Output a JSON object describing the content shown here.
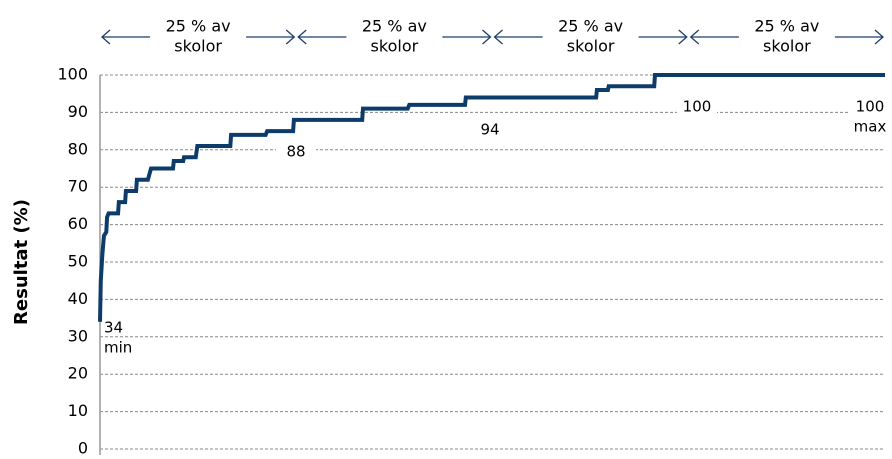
{
  "chart_data": {
    "type": "line",
    "y_label": "Resultat (%)",
    "quartile_headers": [
      [
        "25 % av",
        "skolor"
      ],
      [
        "25 % av",
        "skolor"
      ],
      [
        "25 % av",
        "skolor"
      ],
      [
        "25 % av",
        "skolor"
      ]
    ],
    "annotations": [
      [
        "34",
        "min"
      ],
      [
        "88"
      ],
      [
        "94"
      ],
      [
        "100"
      ],
      [
        "100",
        "max"
      ]
    ],
    "x": [
      0,
      0.1,
      0.3,
      0.5,
      0.8,
      0.9,
      1.1,
      2.3,
      2.4,
      3.2,
      3.3,
      4.6,
      4.7,
      6.1,
      6.5,
      9.3,
      9.4,
      10.6,
      10.7,
      12.2,
      12.4,
      16.6,
      16.7,
      21.1,
      21.3,
      24.6,
      24.7,
      33.4,
      33.5,
      39.2,
      39.4,
      46.5,
      46.6,
      63.2,
      63.3,
      64.7,
      64.8,
      70.6,
      70.7,
      100
    ],
    "values": [
      34,
      45,
      52,
      57,
      58,
      62,
      63,
      63,
      66,
      66,
      69,
      69,
      72,
      72,
      75,
      75,
      77,
      77,
      78,
      78,
      81,
      81,
      84,
      84,
      85,
      85,
      88,
      88,
      91,
      91,
      92,
      92,
      94,
      94,
      96,
      96,
      97,
      97,
      100,
      100
    ],
    "color": "#0d3c6b",
    "xlim": [
      0,
      100
    ],
    "ylim": [
      0,
      100
    ],
    "yticks": [
      0,
      10,
      20,
      30,
      40,
      50,
      60,
      70,
      80,
      90,
      100
    ],
    "grid": true
  }
}
